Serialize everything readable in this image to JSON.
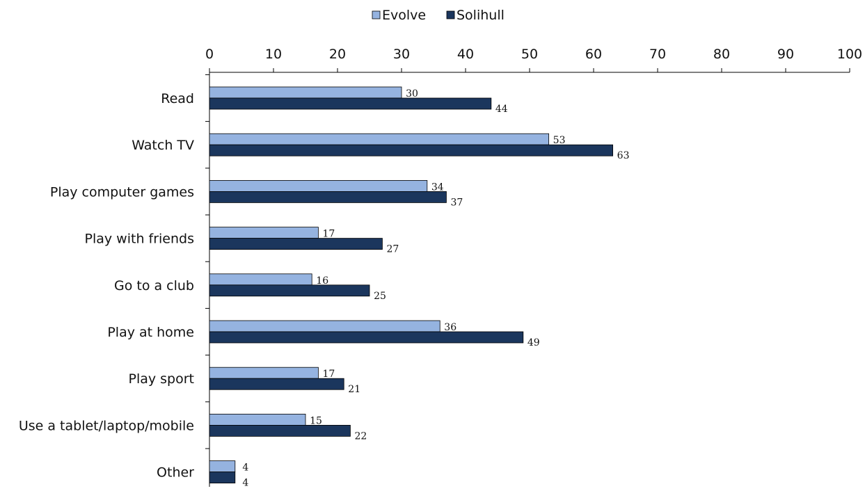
{
  "chart_data": {
    "type": "bar",
    "orientation": "horizontal",
    "categories": [
      "Read",
      "Watch TV",
      "Play computer games",
      "Play with friends",
      "Go to a club",
      "Play at home",
      "Play sport",
      "Use a tablet/laptop/mobile",
      "Other"
    ],
    "series": [
      {
        "name": "Evolve",
        "color": "#95b3e0",
        "values": [
          30,
          53,
          34,
          17,
          16,
          36,
          17,
          15,
          4
        ]
      },
      {
        "name": "Solihull",
        "color": "#1b365d",
        "values": [
          44,
          63,
          37,
          27,
          25,
          49,
          21,
          22,
          4
        ]
      }
    ],
    "xlim": [
      0,
      100
    ],
    "xticks": [
      0,
      10,
      20,
      30,
      40,
      50,
      60,
      70,
      80,
      90,
      100
    ],
    "x_axis_position": "top",
    "legend": "top-center",
    "grid": false,
    "data_labels": true
  }
}
